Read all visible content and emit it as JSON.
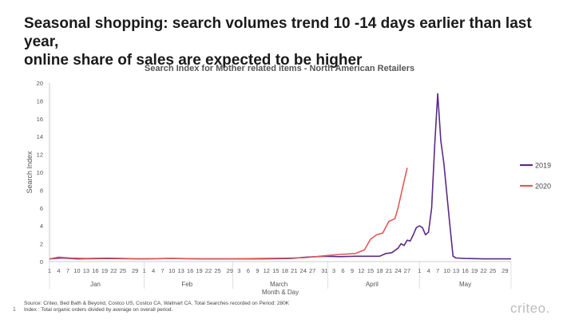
{
  "slide": {
    "title_line1": "Seasonal shopping: search volumes trend 10 -14 days earlier than last year,",
    "title_line2": "online share of sales are expected to be higher",
    "page_number": "1",
    "footnote_line1": "Source: Criteo, Bed Bath & Beyond, Costco US, Costco CA, Walmart CA. Total Searches recorded on Period: 280K",
    "footnote_line2": "Index : Total organic orders divided by average on overall period.",
    "logo_text": "criteo."
  },
  "chart_data": {
    "type": "line",
    "title": "Search Index for Mother related items - North American Retailers",
    "xlabel": "Month & Day",
    "ylabel": "Search Index",
    "ylim": [
      0,
      20
    ],
    "yticks": [
      0,
      2,
      4,
      6,
      8,
      10,
      12,
      14,
      16,
      18,
      20
    ],
    "legend_position": "right",
    "months": [
      {
        "name": "Jan",
        "ticks": [
          "1",
          "4",
          "7",
          "10",
          "13",
          "16",
          "19",
          "22",
          "25",
          "29"
        ]
      },
      {
        "name": "Feb",
        "ticks": [
          "1",
          "4",
          "7",
          "10",
          "13",
          "16",
          "19",
          "22",
          "25",
          "29"
        ]
      },
      {
        "name": "March",
        "ticks": [
          "3",
          "6",
          "9",
          "12",
          "15",
          "18",
          "21",
          "24",
          "27",
          "31"
        ]
      },
      {
        "name": "April",
        "ticks": [
          "3",
          "6",
          "9",
          "12",
          "15",
          "18",
          "21",
          "24",
          "27"
        ]
      },
      {
        "name": "May",
        "ticks": [
          "1",
          "4",
          "7",
          "10",
          "13",
          "16",
          "19",
          "22",
          "25",
          "29"
        ]
      }
    ],
    "series": [
      {
        "name": "2019",
        "color": "#5b2a86",
        "points": [
          [
            "01-01",
            0.3
          ],
          [
            "01-05",
            0.4
          ],
          [
            "01-10",
            0.3
          ],
          [
            "01-20",
            0.35
          ],
          [
            "01-31",
            0.3
          ],
          [
            "02-10",
            0.35
          ],
          [
            "02-20",
            0.3
          ],
          [
            "02-29",
            0.3
          ],
          [
            "03-10",
            0.3
          ],
          [
            "03-20",
            0.35
          ],
          [
            "03-25",
            0.5
          ],
          [
            "03-31",
            0.6
          ],
          [
            "04-05",
            0.55
          ],
          [
            "04-10",
            0.6
          ],
          [
            "04-15",
            0.6
          ],
          [
            "04-18",
            0.6
          ],
          [
            "04-20",
            0.9
          ],
          [
            "04-22",
            1.0
          ],
          [
            "04-24",
            1.5
          ],
          [
            "04-25",
            2.0
          ],
          [
            "04-26",
            1.8
          ],
          [
            "04-27",
            2.4
          ],
          [
            "04-28",
            2.3
          ],
          [
            "04-29",
            3.0
          ],
          [
            "04-30",
            3.8
          ],
          [
            "05-01",
            4.0
          ],
          [
            "05-02",
            3.8
          ],
          [
            "05-03",
            3.0
          ],
          [
            "05-04",
            3.3
          ],
          [
            "05-05",
            6.0
          ],
          [
            "05-06",
            13.0
          ],
          [
            "05-07",
            18.8
          ],
          [
            "05-08",
            13.5
          ],
          [
            "05-09",
            11.0
          ],
          [
            "05-10",
            7.5
          ],
          [
            "05-11",
            4.0
          ],
          [
            "05-12",
            0.6
          ],
          [
            "05-13",
            0.4
          ],
          [
            "05-16",
            0.35
          ],
          [
            "05-22",
            0.3
          ],
          [
            "05-29",
            0.3
          ],
          [
            "05-31",
            0.3
          ]
        ]
      },
      {
        "name": "2020",
        "color": "#e05a57",
        "points": [
          [
            "01-01",
            0.3
          ],
          [
            "01-04",
            0.5
          ],
          [
            "01-08",
            0.4
          ],
          [
            "01-13",
            0.35
          ],
          [
            "01-20",
            0.4
          ],
          [
            "01-31",
            0.3
          ],
          [
            "02-10",
            0.35
          ],
          [
            "02-20",
            0.3
          ],
          [
            "02-29",
            0.3
          ],
          [
            "03-10",
            0.35
          ],
          [
            "03-20",
            0.4
          ],
          [
            "03-25",
            0.45
          ],
          [
            "03-31",
            0.65
          ],
          [
            "04-05",
            0.8
          ],
          [
            "04-10",
            0.9
          ],
          [
            "04-13",
            1.3
          ],
          [
            "04-15",
            2.5
          ],
          [
            "04-17",
            3.0
          ],
          [
            "04-19",
            3.2
          ],
          [
            "04-21",
            4.5
          ],
          [
            "04-23",
            4.8
          ],
          [
            "04-24",
            6.0
          ],
          [
            "04-25",
            7.5
          ],
          [
            "04-26",
            9.0
          ],
          [
            "04-27",
            10.5
          ]
        ]
      }
    ]
  }
}
